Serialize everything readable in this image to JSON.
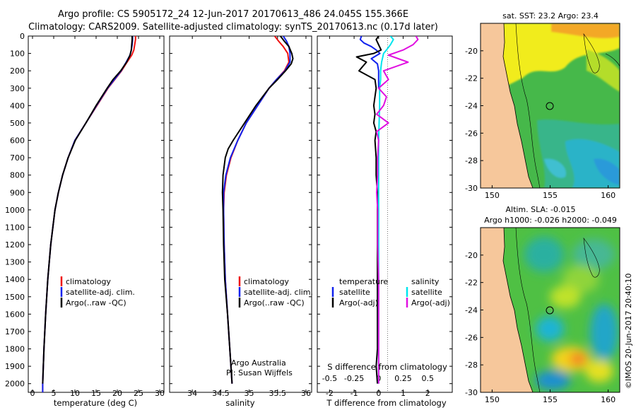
{
  "title": {
    "line1": "Argo profile: CS 5905172_24 12-Jun-2017 20170613_486 24.045S 155.366E",
    "line2": "Climatology: CARS2009. Satellite-adjusted climatology: synTS_20170613.nc (0.17d later)"
  },
  "colors": {
    "climatology": "#ee1111",
    "satellite": "#1122ee",
    "argo": "#000000",
    "sat_t": "#00e5ee",
    "argo_s": "#e010e0",
    "land": "#f6c79b"
  },
  "depth_axis": {
    "min": 0,
    "max": 2050,
    "ticks": [
      0,
      100,
      200,
      300,
      400,
      500,
      600,
      700,
      800,
      900,
      1000,
      1100,
      1200,
      1300,
      1400,
      1500,
      1600,
      1700,
      1800,
      1900,
      2000
    ]
  },
  "chart_data": [
    {
      "type": "line",
      "name": "temperature",
      "xlabel": "temperature (deg C)",
      "xlim": [
        -1,
        31
      ],
      "xticks": [
        0,
        5,
        10,
        15,
        20,
        25,
        30
      ],
      "series": [
        {
          "name": "climatology",
          "color": "#ee1111",
          "depth": [
            0,
            20,
            50,
            80,
            110,
            150,
            200,
            250,
            300,
            400,
            500,
            600,
            700,
            800,
            900,
            1000,
            1200,
            1400,
            1600,
            1800,
            2000,
            2050
          ],
          "values": [
            24.3,
            24.3,
            24.1,
            23.9,
            23.4,
            22.3,
            21.0,
            19.4,
            17.8,
            15.2,
            12.6,
            10.0,
            8.4,
            7.1,
            6.1,
            5.3,
            4.3,
            3.6,
            3.1,
            2.7,
            2.4,
            2.4
          ]
        },
        {
          "name": "satellite-adj. clim.",
          "color": "#1122ee",
          "depth": [
            0,
            20,
            50,
            80,
            110,
            150,
            200,
            250,
            300,
            400,
            500,
            600,
            700,
            800,
            900,
            1000,
            1200,
            1400,
            1600,
            1800,
            2000,
            2050
          ],
          "values": [
            23.6,
            23.6,
            23.5,
            23.3,
            23.0,
            22.1,
            20.9,
            19.3,
            17.7,
            15.1,
            12.6,
            10.0,
            8.4,
            7.1,
            6.1,
            5.3,
            4.3,
            3.6,
            3.1,
            2.7,
            2.4,
            2.4
          ]
        },
        {
          "name": "Argo(..raw -QC)",
          "color": "#000000",
          "depth": [
            0,
            20,
            50,
            80,
            110,
            150,
            200,
            250,
            300,
            350,
            400,
            450,
            500,
            600,
            700,
            800,
            900,
            1000,
            1200,
            1400,
            1600,
            1800,
            2000
          ],
          "values": [
            23.5,
            23.5,
            23.4,
            23.3,
            23.0,
            22.2,
            20.8,
            19.0,
            17.6,
            16.3,
            15.0,
            13.8,
            12.6,
            10.1,
            8.4,
            7.1,
            6.1,
            5.3,
            4.3,
            3.6,
            3.1,
            2.7,
            2.4
          ]
        }
      ],
      "legend": [
        "climatology",
        "satellite-adj. clim.",
        "Argo(..raw -QC)"
      ]
    },
    {
      "type": "line",
      "name": "salinity",
      "xlabel": "salinity",
      "xlim": [
        33.6,
        36.1
      ],
      "xticks": [
        "34",
        "34.5",
        "35",
        "35.5",
        "36"
      ],
      "series": [
        {
          "name": "climatology",
          "color": "#ee1111",
          "depth": [
            0,
            30,
            60,
            100,
            150,
            200,
            250,
            300,
            400,
            500,
            600,
            700,
            800,
            900,
            1000,
            1200,
            1400,
            1600,
            1800,
            2000
          ],
          "values": [
            35.45,
            35.52,
            35.6,
            35.68,
            35.7,
            35.62,
            35.48,
            35.35,
            35.15,
            34.95,
            34.8,
            34.68,
            34.6,
            34.56,
            34.55,
            34.56,
            34.58,
            34.62,
            34.66,
            34.7
          ]
        },
        {
          "name": "satellite-adj. clim.",
          "color": "#1122ee",
          "depth": [
            0,
            30,
            60,
            100,
            150,
            200,
            250,
            300,
            400,
            500,
            600,
            700,
            800,
            900,
            1000,
            1200,
            1400,
            1600,
            1800,
            2000
          ],
          "values": [
            35.6,
            35.66,
            35.7,
            35.72,
            35.72,
            35.63,
            35.48,
            35.35,
            35.15,
            34.95,
            34.8,
            34.67,
            34.59,
            34.55,
            34.55,
            34.56,
            34.58,
            34.62,
            34.66,
            34.7
          ]
        },
        {
          "name": "Argo(..raw -QC)",
          "color": "#000000",
          "depth": [
            0,
            30,
            60,
            100,
            130,
            160,
            200,
            250,
            300,
            400,
            500,
            600,
            650,
            700,
            800,
            900,
            1000,
            1200,
            1400,
            1600,
            1800,
            1900,
            2000
          ],
          "values": [
            35.55,
            35.62,
            35.7,
            35.75,
            35.77,
            35.74,
            35.64,
            35.5,
            35.35,
            35.12,
            34.92,
            34.72,
            34.63,
            34.58,
            34.54,
            34.53,
            34.54,
            34.55,
            34.57,
            34.62,
            34.66,
            34.68,
            34.7
          ]
        }
      ],
      "legend": [
        "climatology",
        "satellite-adj. clim.",
        "Argo(..raw -QC)"
      ],
      "note": [
        "Argo Australia",
        "PI: Susan Wijffels"
      ]
    },
    {
      "type": "line",
      "name": "difference from climatology",
      "xlabel": "T difference from climatology",
      "xlim": [
        -2.5,
        3
      ],
      "xticks": [
        "-2",
        "-1",
        "0",
        "1",
        "2"
      ],
      "xlabel2": "S difference from climatology",
      "xticks2": [
        "-0.5",
        "-0.25",
        "0",
        "0.25",
        "0.5"
      ],
      "series": [
        {
          "name": "temperature satellite",
          "color": "#1122ee",
          "depth": [
            0,
            20,
            40,
            60,
            80,
            100,
            130,
            160,
            200,
            260,
            300
          ],
          "values": [
            -0.7,
            -0.75,
            -0.6,
            -0.3,
            -0.1,
            0.05,
            -0.3,
            -0.05,
            0.0,
            0.0,
            0.0
          ]
        },
        {
          "name": "temperature Argo(-adj)",
          "color": "#000000",
          "depth": [
            0,
            20,
            50,
            80,
            100,
            120,
            150,
            200,
            250,
            300,
            350,
            400,
            450,
            500,
            550,
            600,
            700,
            800,
            900,
            1000,
            1200,
            1400,
            1600,
            1800,
            1900,
            2000
          ],
          "values": [
            0.0,
            -0.1,
            0.0,
            0.1,
            -0.2,
            -0.9,
            -0.5,
            -0.8,
            -0.15,
            -0.1,
            -0.15,
            -0.2,
            -0.15,
            -0.2,
            -0.1,
            -0.15,
            -0.1,
            -0.1,
            -0.05,
            -0.05,
            -0.05,
            -0.05,
            -0.05,
            -0.05,
            -0.1,
            -0.05
          ]
        },
        {
          "name": "salinity satellite",
          "color": "#00e5ee",
          "depth": [
            0,
            20,
            50,
            80,
            100,
            150,
            200,
            250,
            300,
            400,
            600,
            800,
            1000,
            1500,
            2000
          ],
          "values": [
            0.12,
            0.15,
            0.12,
            0.08,
            0.05,
            0.03,
            0.02,
            0.02,
            0.01,
            0.01,
            0.0,
            0.0,
            0.0,
            0.0,
            0.0
          ]
        },
        {
          "name": "salinity Argo(-adj)",
          "color": "#e010e0",
          "depth": [
            0,
            20,
            50,
            80,
            110,
            130,
            150,
            200,
            250,
            300,
            350,
            400,
            450,
            500,
            550,
            600,
            700,
            800,
            900,
            1000,
            1200,
            1400,
            1600,
            1800,
            2000
          ],
          "values": [
            0.38,
            0.4,
            0.35,
            0.25,
            0.1,
            0.2,
            0.3,
            0.05,
            0.1,
            0.0,
            0.08,
            0.05,
            -0.02,
            0.1,
            -0.02,
            0.0,
            -0.01,
            -0.01,
            -0.02,
            -0.01,
            -0.01,
            0.0,
            0.0,
            0.0,
            0.0
          ]
        }
      ],
      "legend_left": [
        "temperature",
        "satellite",
        "Argo(-adj)"
      ],
      "legend_right": [
        "salinity",
        "satellite",
        "Argo(-adj)"
      ]
    },
    {
      "type": "heatmap",
      "name": "sat SST map",
      "title": "sat. SST: 23.2 Argo: 23.4",
      "xticks": [
        "150",
        "155",
        "160"
      ],
      "yticks": [
        "-20",
        "-22",
        "-24",
        "-26",
        "-28",
        "-30"
      ],
      "lon_range": [
        149,
        161
      ],
      "lat_range": [
        -30,
        -18
      ]
    },
    {
      "type": "heatmap",
      "name": "SLA map",
      "title1": "Altim. SLA: -0.015",
      "title2": "Argo h1000: -0.026 h2000: -0.049",
      "xticks": [
        "150",
        "155",
        "160"
      ],
      "yticks": [
        "-20",
        "-22",
        "-24",
        "-26",
        "-28",
        "-30"
      ],
      "lon_range": [
        149,
        161
      ],
      "lat_range": [
        -30,
        -18
      ]
    }
  ],
  "credit": "©IMOS 20-Jun-2017 20:40:10"
}
